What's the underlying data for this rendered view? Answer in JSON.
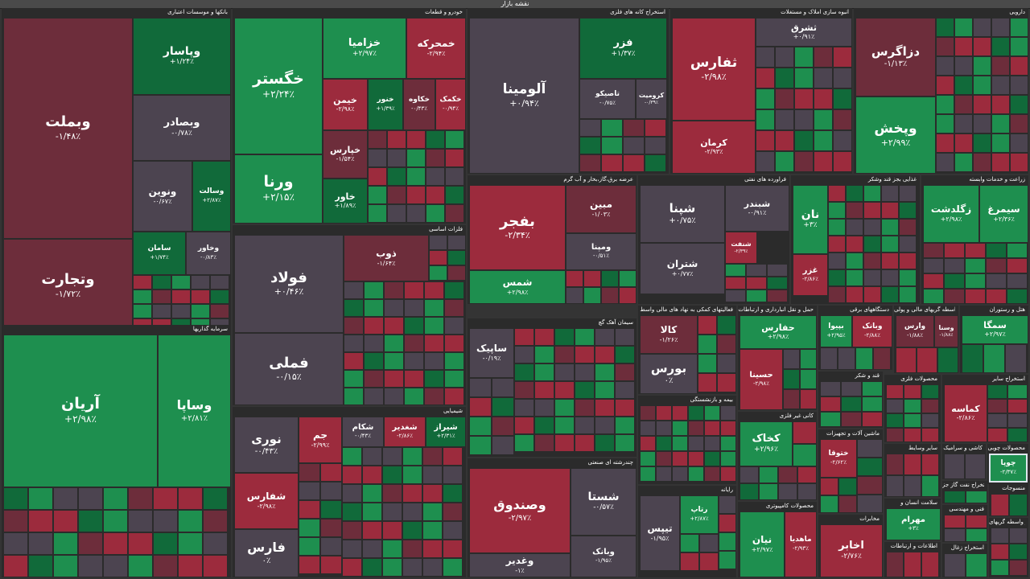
{
  "title": "نقشه بازار",
  "sectors": [
    {
      "key": "banks",
      "label": "بانکها و موسسات اعتباری"
    },
    {
      "key": "auto",
      "label": "خودرو و قطعات"
    },
    {
      "key": "mining",
      "label": "استخراج کانه های فلزی"
    },
    {
      "key": "realestate",
      "label": "انبوه سازی املاک و مستغلات"
    },
    {
      "key": "pharma",
      "label": "دارویی"
    },
    {
      "key": "utilities",
      "label": "عرضه برق،گاز،بخار و آب گرم"
    },
    {
      "key": "refinery",
      "label": "فراورده های نفتی"
    },
    {
      "key": "food",
      "label": "غذایی بجز قند وشکر"
    },
    {
      "key": "agri",
      "label": "زراعت و خدمات وابسته"
    },
    {
      "key": "metals",
      "label": "فلزات اساسی"
    },
    {
      "key": "invest",
      "label": "سرمایه گذاریها"
    },
    {
      "key": "cement",
      "label": "سیمان آهک گچ"
    },
    {
      "key": "chemical",
      "label": "شیمیایی"
    },
    {
      "key": "financial",
      "label": "فعالیتهای کمکی به نهاد های مالی واسط"
    },
    {
      "key": "transport",
      "label": "حمل و نقل انبارداری و ارتباطات"
    },
    {
      "key": "devices",
      "label": "دستگاههای برقی"
    },
    {
      "key": "finbroker",
      "label": "واسطه گریهای مالی و پولی"
    },
    {
      "key": "hotel",
      "label": "هتل و رستوران"
    },
    {
      "key": "multi",
      "label": "چندرشته ای صنعتی"
    },
    {
      "key": "insurance",
      "label": "بیمه و بازنشستگی"
    },
    {
      "key": "nonmetal",
      "label": "کانی غیر فلزی"
    },
    {
      "key": "sugar",
      "label": "قند و شکر"
    },
    {
      "key": "metalproducts",
      "label": "محصولات فلزی"
    },
    {
      "key": "otherextract",
      "label": "استخراج سایر"
    },
    {
      "key": "lastic",
      "label": "لاستیک"
    },
    {
      "key": "radio",
      "label": "رایانه"
    },
    {
      "key": "computerproducts",
      "label": "محصولات کامپیوتری"
    },
    {
      "key": "machinery",
      "label": "ماشین آلات و تجهیزات"
    },
    {
      "key": "telecom",
      "label": "مخابرات"
    },
    {
      "key": "ceramic",
      "label": "کاشی و سرامیک"
    },
    {
      "key": "wood",
      "label": "محصولات چوبی"
    },
    {
      "key": "textiles",
      "label": "منسوجات"
    },
    {
      "key": "oilgas",
      "label": "استخراج نفت گاز جز"
    },
    {
      "key": "health",
      "label": "سلامت انسان و"
    },
    {
      "key": "engineering",
      "label": "فنی و مهندسی"
    },
    {
      "key": "info",
      "label": "اطلاعات و ارتباطات"
    },
    {
      "key": "coal",
      "label": "استخراج زغال"
    },
    {
      "key": "vehicles",
      "label": "سایر وسایط"
    },
    {
      "key": "otherfin",
      "label": "سایر واسطه گریهای"
    }
  ],
  "tiles": [
    {
      "name": "وبملت",
      "pct": "-۱/۴۸٪",
      "c": "dn2"
    },
    {
      "name": "وتجارت",
      "pct": "-۱/۷۲٪",
      "c": "dn2"
    },
    {
      "name": "وپاسار",
      "pct": "+۱/۲۴٪",
      "c": "up2"
    },
    {
      "name": "وبصادر",
      "pct": "-۰/۷۸٪",
      "c": "nt"
    },
    {
      "name": "ونوین",
      "pct": "-۰/۶۷٪",
      "c": "nt"
    },
    {
      "name": "وسالت",
      "pct": "+۲/۸۷٪",
      "c": "up2"
    },
    {
      "name": "سامان",
      "pct": "+۱/۷۴٪",
      "c": "up2"
    },
    {
      "name": "وخاور",
      "pct": "-۰/۸۳٪",
      "c": "nt"
    },
    {
      "name": "خگستر",
      "pct": "+۲/۲۴٪",
      "c": "up"
    },
    {
      "name": "ورنا",
      "pct": "+۲/۱۵٪",
      "c": "up"
    },
    {
      "name": "خزامیا",
      "pct": "+۲/۹۷٪",
      "c": "up"
    },
    {
      "name": "خمحرکه",
      "pct": "-۲/۹۴٪",
      "c": "dn"
    },
    {
      "name": "خیمن",
      "pct": "-۲/۹۸٪",
      "c": "dn"
    },
    {
      "name": "خپارس",
      "pct": "-۱/۵۴٪",
      "c": "dn2"
    },
    {
      "name": "خاور",
      "pct": "+۱/۸۹٪",
      "c": "up2"
    },
    {
      "name": "خنور",
      "pct": "+۱/۳۹٪",
      "c": "up2"
    },
    {
      "name": "خکاوه",
      "pct": "-۰/۴۳٪",
      "c": "dn2"
    },
    {
      "name": "خکمک",
      "pct": "-۰/۹۴٪",
      "c": "dn"
    },
    {
      "name": "آلومینا",
      "pct": "+۰/۹۴٪",
      "c": "nt"
    },
    {
      "name": "فزر",
      "pct": "+۱/۳۷٪",
      "c": "up2"
    },
    {
      "name": "تاصیکو",
      "pct": "-۰/۷۵٪",
      "c": "nt"
    },
    {
      "name": "کرومیت",
      "pct": "-۰/۳۹٪",
      "c": "nt"
    },
    {
      "name": "ثفارس",
      "pct": "-۲/۹۸٪",
      "c": "dn"
    },
    {
      "name": "کرمان",
      "pct": "-۲/۹۳٪",
      "c": "dn"
    },
    {
      "name": "ثشرق",
      "pct": "+۰/۹۱٪",
      "c": "nt"
    },
    {
      "name": "دزاگرس",
      "pct": "-۱/۱۳٪",
      "c": "dn2"
    },
    {
      "name": "وپخش",
      "pct": "+۲/۹۹٪",
      "c": "up"
    },
    {
      "name": "بفجر",
      "pct": "-۲/۳۴٪",
      "c": "dn"
    },
    {
      "name": "مبین",
      "pct": "-۱/۰۳٪",
      "c": "dn2"
    },
    {
      "name": "ومپنا",
      "pct": "-۰/۵۱٪",
      "c": "nt"
    },
    {
      "name": "شمس",
      "pct": "+۲/۹۸٪",
      "c": "up"
    },
    {
      "name": "شپنا",
      "pct": "+۰/۷۵٪",
      "c": "nt"
    },
    {
      "name": "شبندر",
      "pct": "-۰/۹۱٪",
      "c": "nt"
    },
    {
      "name": "شتران",
      "pct": "+۰/۷۷٪",
      "c": "nt"
    },
    {
      "name": "شنفت",
      "pct": "-۲/۳۹٪",
      "c": "dn"
    },
    {
      "name": "نان",
      "pct": "+۳٪",
      "c": "up"
    },
    {
      "name": "غزر",
      "pct": "-۲/۸۶٪",
      "c": "dn"
    },
    {
      "name": "زگلدشت",
      "pct": "+۲/۹۸٪",
      "c": "up"
    },
    {
      "name": "سیمرغ",
      "pct": "+۲/۳۶٪",
      "c": "up"
    },
    {
      "name": "فولاد",
      "pct": "+۰/۴۶٪",
      "c": "nt"
    },
    {
      "name": "فملی",
      "pct": "-۰/۱۵٪",
      "c": "nt"
    },
    {
      "name": "ذوب",
      "pct": "-۱/۶۴٪",
      "c": "dn2"
    },
    {
      "name": "آریان",
      "pct": "+۲/۹۸٪",
      "c": "up"
    },
    {
      "name": "وساپا",
      "pct": "+۲/۸۱٪",
      "c": "up"
    },
    {
      "name": "ساپیک",
      "pct": "-۰/۱۹٪",
      "c": "nt"
    },
    {
      "name": "کالا",
      "pct": "-۱/۲۶٪",
      "c": "dn2"
    },
    {
      "name": "بورس",
      "pct": "۰٪",
      "c": "nt"
    },
    {
      "name": "حفارس",
      "pct": "+۲/۹۸٪",
      "c": "up"
    },
    {
      "name": "بپیوا",
      "pct": "+۲/۹۵٪",
      "c": "up"
    },
    {
      "name": "وبانک",
      "pct": "-۲/۸۸٪",
      "c": "dn"
    },
    {
      "name": "وارس",
      "pct": "-۱/۸۸٪",
      "c": "dn2"
    },
    {
      "name": "وسنا",
      "pct": "-۱/۸۸٪",
      "c": "dn2"
    },
    {
      "name": "سمگا",
      "pct": "+۲/۹۷٪",
      "c": "up"
    },
    {
      "name": "حسینا",
      "pct": "-۲/۹۸٪",
      "c": "dn"
    },
    {
      "name": "شستا",
      "pct": "-۰/۵۷٪",
      "c": "nt"
    },
    {
      "name": "وصندوق",
      "pct": "-۲/۹۷٪",
      "c": "dn"
    },
    {
      "name": "وغدیر",
      "pct": "-۱٪",
      "c": "nt"
    },
    {
      "name": "وبانک",
      "pct": "-۱/۹۵٪",
      "c": "nt"
    },
    {
      "name": "نوری",
      "pct": "-۰/۴۳٪",
      "c": "nt"
    },
    {
      "name": "جم",
      "pct": "-۲/۹۹٪",
      "c": "dn"
    },
    {
      "name": "شفارس",
      "pct": "-۲/۹۸٪",
      "c": "dn"
    },
    {
      "name": "فارس",
      "pct": "۰٪",
      "c": "nt"
    },
    {
      "name": "شکام",
      "pct": "-۰/۴۳٪",
      "c": "nt"
    },
    {
      "name": "شغدیر",
      "pct": "-۲/۸۶٪",
      "c": "dn"
    },
    {
      "name": "شیراز",
      "pct": "+۲/۳۱٪",
      "c": "up2"
    },
    {
      "name": "تیپس",
      "pct": "-۱/۹۵٪",
      "c": "nt"
    },
    {
      "name": "رتاپ",
      "pct": "+۲/۸۷٪",
      "c": "up"
    },
    {
      "name": "نیان",
      "pct": "+۲/۹۷٪",
      "c": "up"
    },
    {
      "name": "ماهدیا",
      "pct": "-۲/۹۳٪",
      "c": "dn"
    },
    {
      "name": "اخابر",
      "pct": "-۲/۷۶٪",
      "c": "dn"
    },
    {
      "name": "کخاک",
      "pct": "+۲/۹۶٪",
      "c": "up"
    },
    {
      "name": "ختوقا",
      "pct": "-۲/۶۲٪",
      "c": "dn"
    },
    {
      "name": "کلتوسا",
      "pct": "-۲/۹۲٪",
      "c": "dn"
    },
    {
      "name": "مهرام",
      "pct": "+۳٪",
      "c": "up"
    },
    {
      "name": "کماسه",
      "pct": "-۲/۸۶٪",
      "c": "dn"
    },
    {
      "name": "چوپا",
      "pct": "-۲/۳۷٪",
      "c": "up"
    },
    {
      "name": "کساوه",
      "pct": "+۲/۹۷٪",
      "c": "up"
    }
  ],
  "smalls": [
    "وپارس",
    "وکار",
    "وسینا",
    "وصنا",
    "وسپه",
    "وملل",
    "کیانا",
    "مهر",
    "وحکمت",
    "ولپارس",
    "خودرو",
    "خشرق",
    "خریخت",
    "خنصیر",
    "خاهن",
    "ختراک",
    "خموتور",
    "ختور",
    "خگستر",
    "کاما",
    "کگل",
    "ودری",
    "فخوز",
    "فاسمین",
    "فپنتا",
    "سیمرغ",
    "سبزوا",
    "ساوه",
    "ستران",
    "سصفها",
    "سکرما",
    "سپاها",
    "سهگمت",
    "سبهان",
    "سخزر",
    "کبافق",
    "وملل",
    "آسیا",
    "ما",
    "کپرور",
    "خلاس",
    "شاراک",
    "شپدیس",
    "شپاکسا",
    "شکلر",
    "زاگرس",
    "خراسان",
    "مارون",
    "پترول",
    "شگویا",
    "شسپا",
    "رانفور",
    "رتکو",
    "ولقمان",
    "وکبهمن",
    "واتی",
    "وصنعت"
  ]
}
